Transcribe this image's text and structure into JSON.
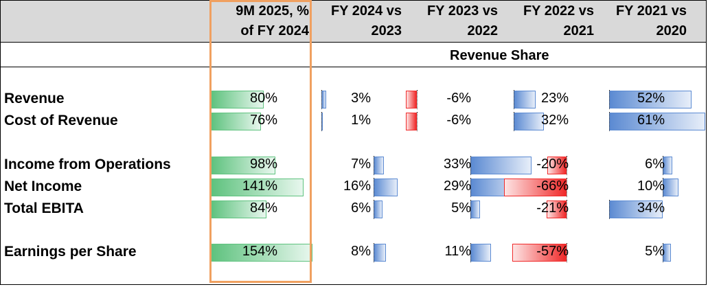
{
  "headers": {
    "col1": "9M 2025, %\nof FY 2024",
    "col2": "FY 2024 vs\n2023",
    "col3": "FY 2023 vs\n2022",
    "col4": "FY 2022 vs\n2021",
    "col5": "FY 2021 vs\n2020"
  },
  "section_title": "Revenue Share",
  "colors": {
    "positive_green": "#5ec27e",
    "positive_blue": "#5b8ad2",
    "negative_red": "#f02a2a",
    "highlight_outline": "#f0a060",
    "header_bg": "#d9d9d9"
  },
  "rows": [
    {
      "label": "Revenue",
      "values": [
        "80%",
        "3%",
        "-6%",
        "23%",
        "52%"
      ]
    },
    {
      "label": "Cost of Revenue",
      "values": [
        "76%",
        "1%",
        "-6%",
        "32%",
        "61%"
      ]
    },
    {
      "label": "Income from Operations",
      "values": [
        "98%",
        "7%",
        "33%",
        "-20%",
        "6%"
      ]
    },
    {
      "label": "Net Income",
      "values": [
        "141%",
        "16%",
        "29%",
        "-66%",
        "10%"
      ]
    },
    {
      "label": "Total EBITA",
      "values": [
        "84%",
        "6%",
        "5%",
        "-21%",
        "34%"
      ]
    },
    {
      "label": "Earnings per Share",
      "values": [
        "154%",
        "8%",
        "11%",
        "-57%",
        "5%"
      ]
    }
  ],
  "bar_values": [
    [
      80,
      3,
      -6,
      23,
      52
    ],
    [
      76,
      1,
      -6,
      32,
      61
    ],
    [
      98,
      7,
      33,
      -20,
      6
    ],
    [
      141,
      16,
      29,
      -66,
      10
    ],
    [
      84,
      6,
      5,
      -21,
      34
    ],
    [
      154,
      8,
      11,
      -57,
      5
    ]
  ]
}
